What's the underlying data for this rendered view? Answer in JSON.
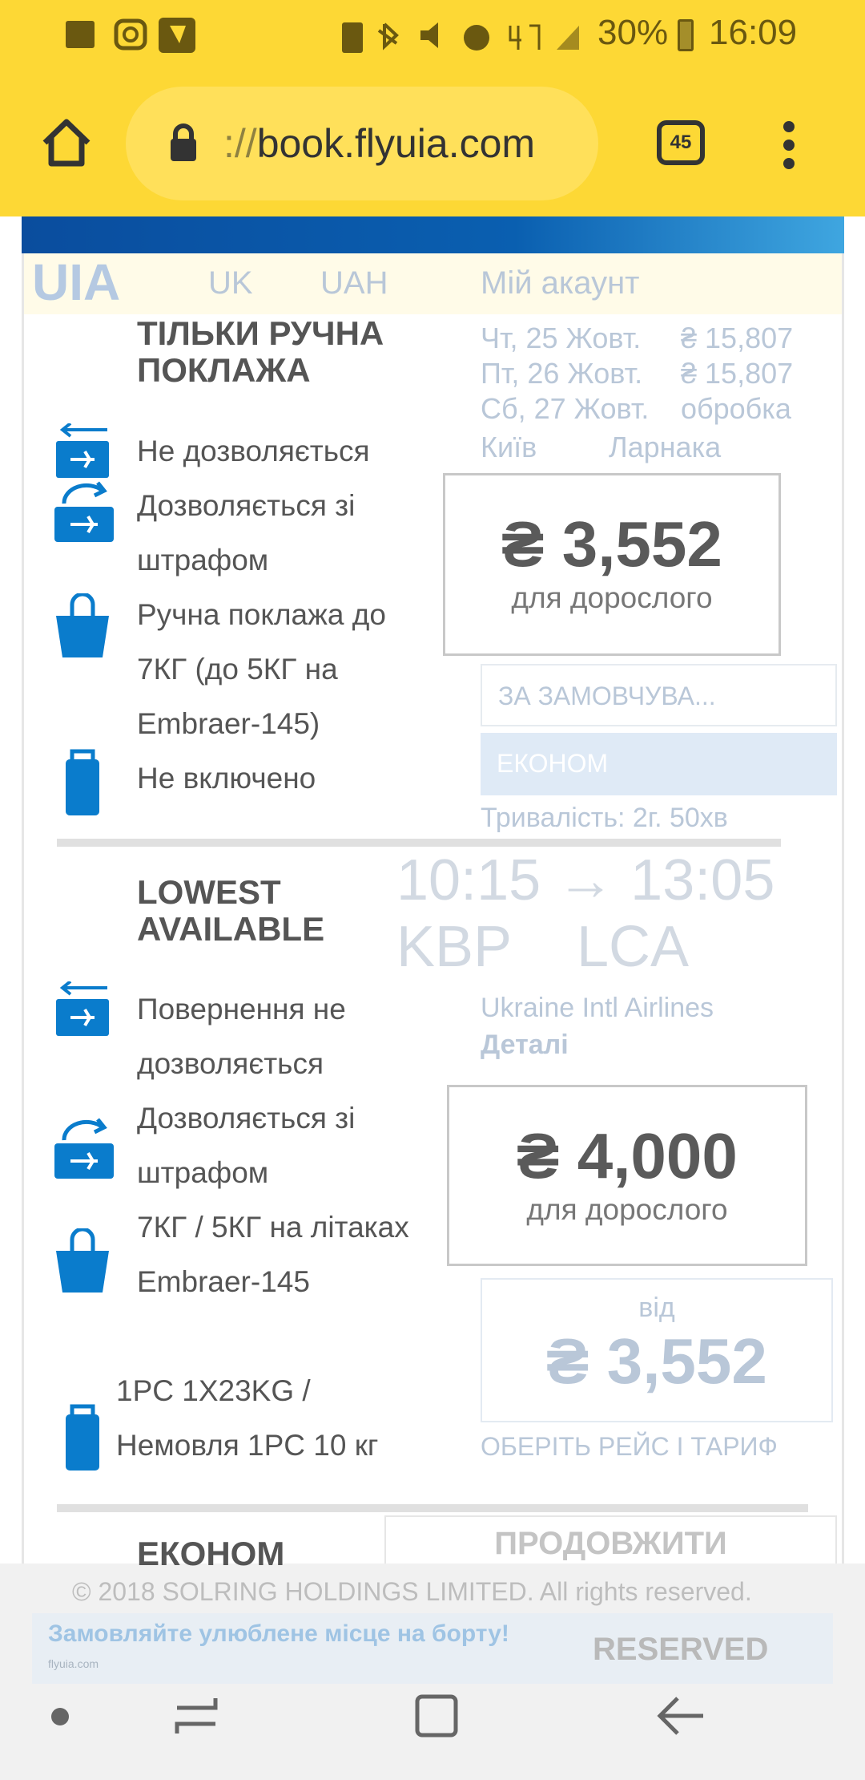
{
  "status_bar": {
    "battery": "30%",
    "time": "16:09",
    "network": "4G"
  },
  "browser": {
    "url_scheme": "://",
    "url_host": "book.flyuia.com",
    "tab_count": "45"
  },
  "background_page": {
    "logo": "UIA",
    "language": "UK",
    "currency": "UAH",
    "account": "Мій акаунт",
    "dates": [
      {
        "label": "Чт, 25 Жовт.",
        "price": "₴ 15,807"
      },
      {
        "label": "Пт, 26 Жовт.",
        "price": "₴ 15,807"
      },
      {
        "label": "Сб, 27 Жовт.",
        "price": "обробка"
      }
    ],
    "from": "Київ",
    "to": "Ларнака",
    "sort": "ЗА ЗАМОВЧУВА...",
    "cabin": "ЕКОНОМ",
    "times": "10:15 → 13:05",
    "from_code": "KBP",
    "to_code": "LCA",
    "duration": "Тривалість: 2г. 50хв",
    "airline": "Ukraine Intl Airlines",
    "details": "Деталі",
    "from_label": "від",
    "from_price": "₴ 3,552",
    "banner": "Замовляйте улюблене місце на борту!",
    "banner_site": "flyuia.com",
    "banner_stamp": "RESERVED",
    "cart_text": "ОБЕРІТЬ РЕЙС І ТАРИФ",
    "continue": "ПРОДОВЖИТИ",
    "copyright": "© 2018 SOLRING HOLDINGS LIMITED. All rights reserved."
  },
  "fares": [
    {
      "title": "ТІЛЬКИ РУЧНА ПОКЛАЖА",
      "price": "₴ 3,552",
      "price_note": "для дорослого",
      "items": [
        {
          "icon": "refund-ticket-icon",
          "text": "Не дозволяється"
        },
        {
          "icon": "exchange-ticket-icon",
          "text": "Дозволяється зі штрафом"
        },
        {
          "icon": "hand-bag-icon",
          "text": "Ручна поклажа до 7КГ (до 5КГ на Embraer-145)"
        },
        {
          "icon": "suitcase-icon",
          "text": "Не включено"
        }
      ]
    },
    {
      "title": "LOWEST AVAILABLE",
      "price": "₴ 4,000",
      "price_note": "для дорослого",
      "items": [
        {
          "icon": "refund-ticket-icon",
          "text": "Повернення не дозволяється"
        },
        {
          "icon": "exchange-ticket-icon",
          "text": "Дозволяється зі штрафом"
        },
        {
          "icon": "hand-bag-icon",
          "text": "7КГ / 5КГ на літаках Embraer-145"
        },
        {
          "icon": "suitcase-icon",
          "text": "1PC 1X23KG / Немовля 1PC 10 кг"
        }
      ]
    },
    {
      "title": "ЕКОНОМ"
    }
  ],
  "colors": {
    "accent": "#0A7CCC",
    "browser_bar": "#FDD835"
  }
}
